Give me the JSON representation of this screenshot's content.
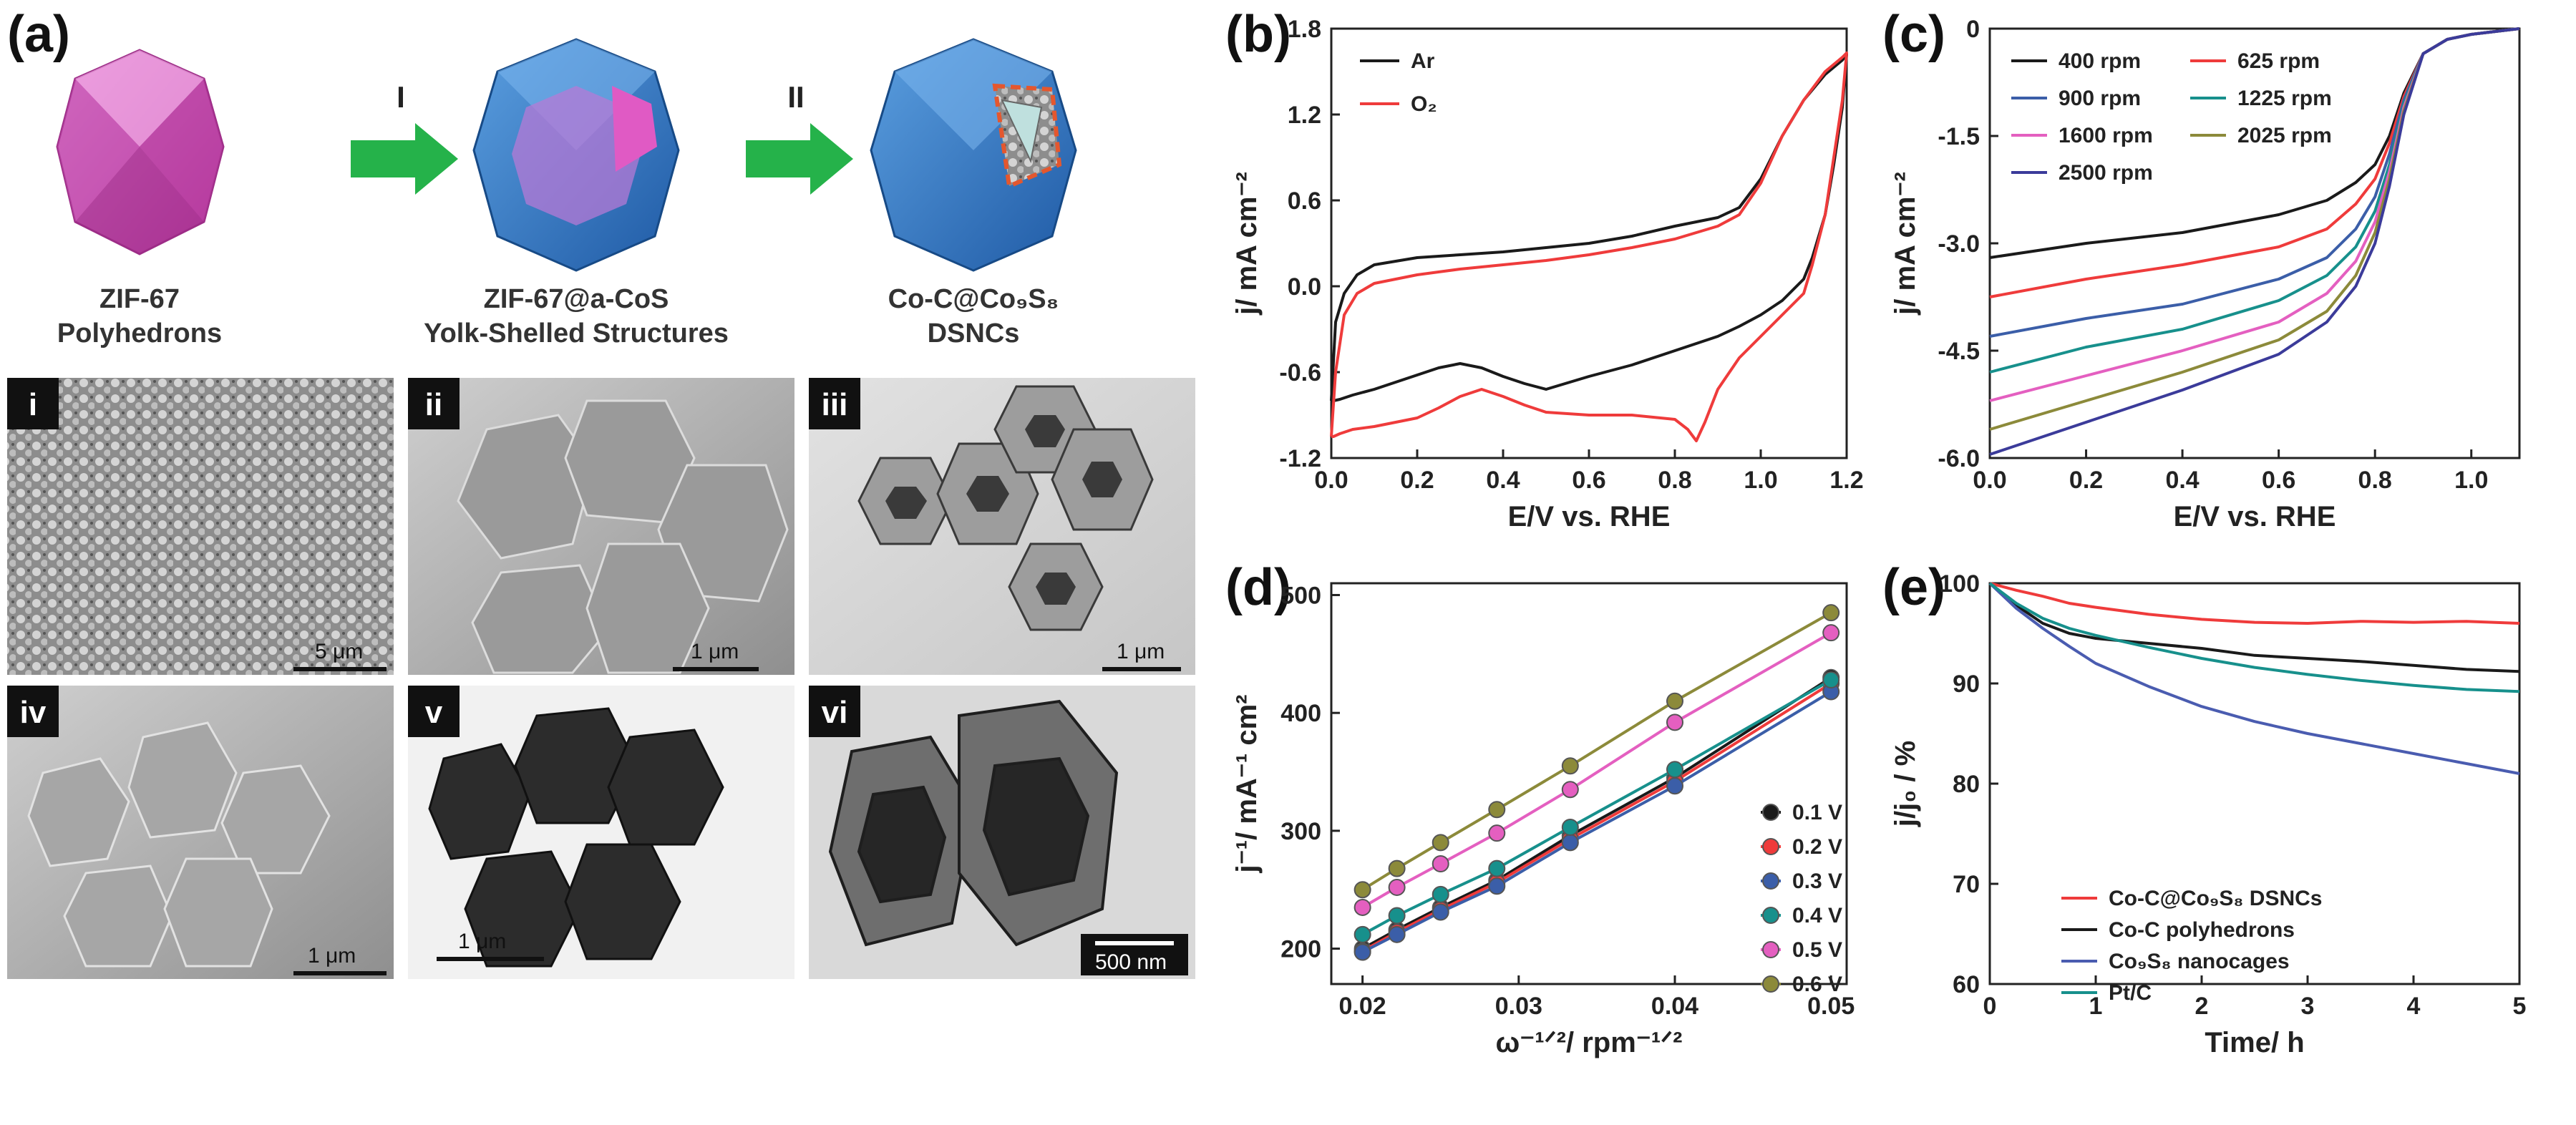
{
  "panel_a": {
    "label": "(a)",
    "structures": [
      {
        "line1": "ZIF-67",
        "line2": "Polyhedrons"
      },
      {
        "line1": "ZIF-67@a-CoS",
        "line2": "Yolk-Shelled Structures"
      },
      {
        "line1": "Co-C@Co₉S₈",
        "line2": "DSNCs"
      }
    ],
    "steps": [
      "I",
      "II"
    ],
    "micrographs": [
      {
        "label": "i",
        "scale": "5 μm"
      },
      {
        "label": "ii",
        "scale": "1 μm"
      },
      {
        "label": "iii",
        "scale": "1 μm"
      },
      {
        "label": "iv",
        "scale": "1 μm"
      },
      {
        "label": "v",
        "scale": "1 μm"
      },
      {
        "label": "vi",
        "scale": "500 nm"
      }
    ]
  },
  "chart_data": [
    {
      "panel": "(b)",
      "type": "line",
      "xlabel": "E/V vs. RHE",
      "ylabel": "j/ mA cm⁻²",
      "xlim": [
        0.0,
        1.2
      ],
      "ylim": [
        -1.2,
        1.8
      ],
      "xticks": [
        "0.0",
        "0.2",
        "0.4",
        "0.6",
        "0.8",
        "1.0",
        "1.2"
      ],
      "yticks": [
        "-1.2",
        "-0.6",
        "0.0",
        "0.6",
        "1.2",
        "1.8"
      ],
      "legend": [
        "Ar",
        "O₂"
      ],
      "series": [
        {
          "name": "Ar",
          "color": "#1a1a1a",
          "x": [
            0.0,
            0.01,
            0.03,
            0.06,
            0.1,
            0.2,
            0.3,
            0.4,
            0.5,
            0.6,
            0.7,
            0.8,
            0.9,
            0.95,
            1.0,
            1.05,
            1.1,
            1.15,
            1.19,
            1.2,
            1.19,
            1.17,
            1.15,
            1.12,
            1.1,
            1.05,
            1.0,
            0.95,
            0.9,
            0.8,
            0.7,
            0.6,
            0.5,
            0.45,
            0.4,
            0.35,
            0.3,
            0.25,
            0.2,
            0.1,
            0.05,
            0.02,
            0.005,
            0.0
          ],
          "y": [
            -0.8,
            -0.25,
            -0.05,
            0.08,
            0.15,
            0.2,
            0.22,
            0.24,
            0.27,
            0.3,
            0.35,
            0.42,
            0.48,
            0.55,
            0.75,
            1.05,
            1.3,
            1.48,
            1.58,
            1.62,
            1.25,
            0.85,
            0.5,
            0.2,
            0.05,
            -0.1,
            -0.2,
            -0.28,
            -0.35,
            -0.45,
            -0.55,
            -0.63,
            -0.72,
            -0.68,
            -0.63,
            -0.57,
            -0.54,
            -0.57,
            -0.62,
            -0.72,
            -0.76,
            -0.79,
            -0.8,
            -0.8
          ]
        },
        {
          "name": "O₂",
          "color": "#ef3b3b",
          "x": [
            0.0,
            0.01,
            0.03,
            0.06,
            0.1,
            0.2,
            0.3,
            0.4,
            0.5,
            0.6,
            0.7,
            0.8,
            0.9,
            0.95,
            1.0,
            1.05,
            1.1,
            1.15,
            1.19,
            1.2,
            1.19,
            1.17,
            1.15,
            1.12,
            1.1,
            1.05,
            1.0,
            0.95,
            0.9,
            0.87,
            0.85,
            0.83,
            0.8,
            0.7,
            0.6,
            0.5,
            0.45,
            0.4,
            0.35,
            0.3,
            0.25,
            0.2,
            0.1,
            0.05,
            0.02,
            0.005,
            0.0
          ],
          "y": [
            -1.05,
            -0.6,
            -0.2,
            -0.05,
            0.02,
            0.08,
            0.12,
            0.15,
            0.18,
            0.22,
            0.27,
            0.33,
            0.42,
            0.5,
            0.72,
            1.05,
            1.3,
            1.5,
            1.6,
            1.63,
            1.3,
            0.9,
            0.5,
            0.15,
            -0.05,
            -0.2,
            -0.35,
            -0.5,
            -0.72,
            -0.95,
            -1.08,
            -1.0,
            -0.93,
            -0.9,
            -0.9,
            -0.88,
            -0.83,
            -0.77,
            -0.72,
            -0.77,
            -0.85,
            -0.92,
            -0.98,
            -1.0,
            -1.03,
            -1.05,
            -1.05
          ]
        }
      ]
    },
    {
      "panel": "(c)",
      "type": "line",
      "xlabel": "E/V vs. RHE",
      "ylabel": "j/ mA cm⁻²",
      "xlim": [
        0.0,
        1.1
      ],
      "ylim": [
        -6.0,
        0.0
      ],
      "xticks": [
        "0.0",
        "0.2",
        "0.4",
        "0.6",
        "0.8",
        "1.0"
      ],
      "yticks": [
        "-6.0",
        "-4.5",
        "-3.0",
        "-1.5",
        "0"
      ],
      "legend": [
        "400 rpm",
        "625 rpm",
        "900 rpm",
        "1225 rpm",
        "1600 rpm",
        "2025 rpm",
        "2500 rpm"
      ],
      "series": [
        {
          "name": "400 rpm",
          "color": "#1a1a1a",
          "x": [
            0.0,
            0.2,
            0.4,
            0.6,
            0.7,
            0.76,
            0.8,
            0.83,
            0.86,
            0.9,
            0.95,
            1.0,
            1.1
          ],
          "y": [
            -3.2,
            -3.0,
            -2.85,
            -2.6,
            -2.4,
            -2.15,
            -1.9,
            -1.5,
            -0.9,
            -0.35,
            -0.15,
            -0.08,
            0.0
          ]
        },
        {
          "name": "625 rpm",
          "color": "#ef3b3b",
          "x": [
            0.0,
            0.2,
            0.4,
            0.6,
            0.7,
            0.76,
            0.8,
            0.83,
            0.86,
            0.9,
            0.95,
            1.0,
            1.1
          ],
          "y": [
            -3.75,
            -3.5,
            -3.3,
            -3.05,
            -2.8,
            -2.45,
            -2.1,
            -1.6,
            -0.95,
            -0.35,
            -0.15,
            -0.08,
            0.0
          ]
        },
        {
          "name": "900 rpm",
          "color": "#3b5ea8",
          "x": [
            0.0,
            0.2,
            0.4,
            0.6,
            0.7,
            0.76,
            0.8,
            0.83,
            0.86,
            0.9,
            0.95,
            1.0,
            1.1
          ],
          "y": [
            -4.3,
            -4.05,
            -3.85,
            -3.5,
            -3.2,
            -2.8,
            -2.35,
            -1.75,
            -1.0,
            -0.35,
            -0.15,
            -0.08,
            0.0
          ]
        },
        {
          "name": "1225 rpm",
          "color": "#17908c",
          "x": [
            0.0,
            0.2,
            0.4,
            0.6,
            0.7,
            0.76,
            0.8,
            0.83,
            0.86,
            0.9,
            0.95,
            1.0,
            1.1
          ],
          "y": [
            -4.8,
            -4.45,
            -4.2,
            -3.8,
            -3.45,
            -3.05,
            -2.55,
            -1.9,
            -1.05,
            -0.35,
            -0.15,
            -0.08,
            0.0
          ]
        },
        {
          "name": "1600 rpm",
          "color": "#e45fc0",
          "x": [
            0.0,
            0.2,
            0.4,
            0.6,
            0.7,
            0.76,
            0.8,
            0.83,
            0.86,
            0.9,
            0.95,
            1.0,
            1.1
          ],
          "y": [
            -5.2,
            -4.85,
            -4.5,
            -4.1,
            -3.7,
            -3.25,
            -2.7,
            -2.0,
            -1.1,
            -0.35,
            -0.15,
            -0.08,
            0.0
          ]
        },
        {
          "name": "2025 rpm",
          "color": "#8c8a3a",
          "x": [
            0.0,
            0.2,
            0.4,
            0.6,
            0.7,
            0.76,
            0.8,
            0.83,
            0.86,
            0.9,
            0.95,
            1.0,
            1.1
          ],
          "y": [
            -5.6,
            -5.2,
            -4.8,
            -4.35,
            -3.95,
            -3.45,
            -2.85,
            -2.1,
            -1.15,
            -0.35,
            -0.15,
            -0.08,
            0.0
          ]
        },
        {
          "name": "2500 rpm",
          "color": "#3b3b9a",
          "x": [
            0.0,
            0.2,
            0.4,
            0.6,
            0.7,
            0.76,
            0.8,
            0.83,
            0.86,
            0.9,
            0.95,
            1.0,
            1.1
          ],
          "y": [
            -5.95,
            -5.5,
            -5.05,
            -4.55,
            -4.1,
            -3.6,
            -3.0,
            -2.2,
            -1.2,
            -0.35,
            -0.15,
            -0.08,
            0.0
          ]
        }
      ]
    },
    {
      "panel": "(d)",
      "type": "line",
      "xlabel": "ω⁻¹ᐟ²/ rpm⁻¹ᐟ²",
      "ylabel": "j⁻¹/ mA⁻¹ cm²",
      "xlim": [
        0.018,
        0.051
      ],
      "ylim": [
        170,
        510
      ],
      "xticks": [
        "0.02",
        "0.03",
        "0.04",
        "0.05"
      ],
      "xtickvals": [
        0.02,
        0.03,
        0.04,
        0.05
      ],
      "yticks": [
        "200",
        "300",
        "400",
        "500"
      ],
      "ytickvals": [
        200,
        300,
        400,
        500
      ],
      "legend": [
        "0.1 V",
        "0.2 V",
        "0.3 V",
        "0.4 V",
        "0.5 V",
        "0.6 V"
      ],
      "series": [
        {
          "name": "0.1 V",
          "color": "#1a1a1a",
          "x": [
            0.02,
            0.0222,
            0.025,
            0.0286,
            0.0333,
            0.04,
            0.05
          ],
          "y": [
            200,
            216,
            235,
            258,
            296,
            345,
            430
          ]
        },
        {
          "name": "0.2 V",
          "color": "#ef3b3b",
          "x": [
            0.02,
            0.0222,
            0.025,
            0.0286,
            0.0333,
            0.04,
            0.05
          ],
          "y": [
            198,
            214,
            233,
            256,
            293,
            342,
            425
          ]
        },
        {
          "name": "0.3 V",
          "color": "#3b5ea8",
          "x": [
            0.02,
            0.0222,
            0.025,
            0.0286,
            0.0333,
            0.04,
            0.05
          ],
          "y": [
            197,
            212,
            231,
            253,
            290,
            338,
            418
          ]
        },
        {
          "name": "0.4 V",
          "color": "#17908c",
          "x": [
            0.02,
            0.0222,
            0.025,
            0.0286,
            0.0333,
            0.04,
            0.05
          ],
          "y": [
            212,
            228,
            246,
            268,
            303,
            352,
            428
          ]
        },
        {
          "name": "0.5 V",
          "color": "#e45fc0",
          "x": [
            0.02,
            0.0222,
            0.025,
            0.0286,
            0.0333,
            0.04,
            0.05
          ],
          "y": [
            235,
            252,
            272,
            298,
            335,
            392,
            468
          ]
        },
        {
          "name": "0.6 V",
          "color": "#8c8a3a",
          "x": [
            0.02,
            0.0222,
            0.025,
            0.0286,
            0.0333,
            0.04,
            0.05
          ],
          "y": [
            250,
            268,
            290,
            318,
            355,
            410,
            485
          ]
        }
      ]
    },
    {
      "panel": "(e)",
      "type": "line",
      "xlabel": "Time/ h",
      "ylabel": "j/j₀ / %",
      "xlim": [
        0,
        5
      ],
      "ylim": [
        60,
        100
      ],
      "xticks": [
        "0",
        "1",
        "2",
        "3",
        "4",
        "5"
      ],
      "yticks": [
        "60",
        "70",
        "80",
        "90",
        "100"
      ],
      "legend": [
        "Co-C@Co₉S₈ DSNCs",
        "Co-C polyhedrons",
        "Co₉S₈ nanocages",
        "Pt/C"
      ],
      "series": [
        {
          "name": "Co-C@Co₉S₈ DSNCs",
          "color": "#ef3b3b",
          "x": [
            0,
            0.25,
            0.5,
            0.75,
            1.0,
            1.5,
            2.0,
            2.5,
            3.0,
            3.5,
            4.0,
            4.5,
            5.0
          ],
          "y": [
            100,
            99.3,
            98.7,
            98.0,
            97.6,
            96.9,
            96.4,
            96.1,
            96.0,
            96.2,
            96.1,
            96.2,
            96.0
          ]
        },
        {
          "name": "Co-C polyhedrons",
          "color": "#1a1a1a",
          "x": [
            0,
            0.25,
            0.5,
            0.75,
            1.0,
            1.5,
            2.0,
            2.5,
            3.0,
            3.5,
            4.0,
            4.5,
            5.0
          ],
          "y": [
            100,
            97.8,
            96.0,
            95.0,
            94.5,
            94.0,
            93.5,
            92.8,
            92.5,
            92.2,
            91.8,
            91.4,
            91.2
          ]
        },
        {
          "name": "Co₉S₈ nanocages",
          "color": "#4a5cb0",
          "x": [
            0,
            0.25,
            0.5,
            0.75,
            1.0,
            1.5,
            2.0,
            2.5,
            3.0,
            3.5,
            4.0,
            4.5,
            5.0
          ],
          "y": [
            100,
            97.5,
            95.5,
            93.7,
            92.0,
            89.7,
            87.7,
            86.2,
            85.0,
            84.0,
            83.0,
            82.0,
            81.0
          ]
        },
        {
          "name": "Pt/C",
          "color": "#17908c",
          "x": [
            0,
            0.25,
            0.5,
            0.75,
            1.0,
            1.5,
            2.0,
            2.5,
            3.0,
            3.5,
            4.0,
            4.5,
            5.0
          ],
          "y": [
            100,
            98.0,
            96.5,
            95.5,
            94.8,
            93.6,
            92.5,
            91.6,
            90.9,
            90.3,
            89.8,
            89.4,
            89.2
          ]
        }
      ]
    }
  ]
}
